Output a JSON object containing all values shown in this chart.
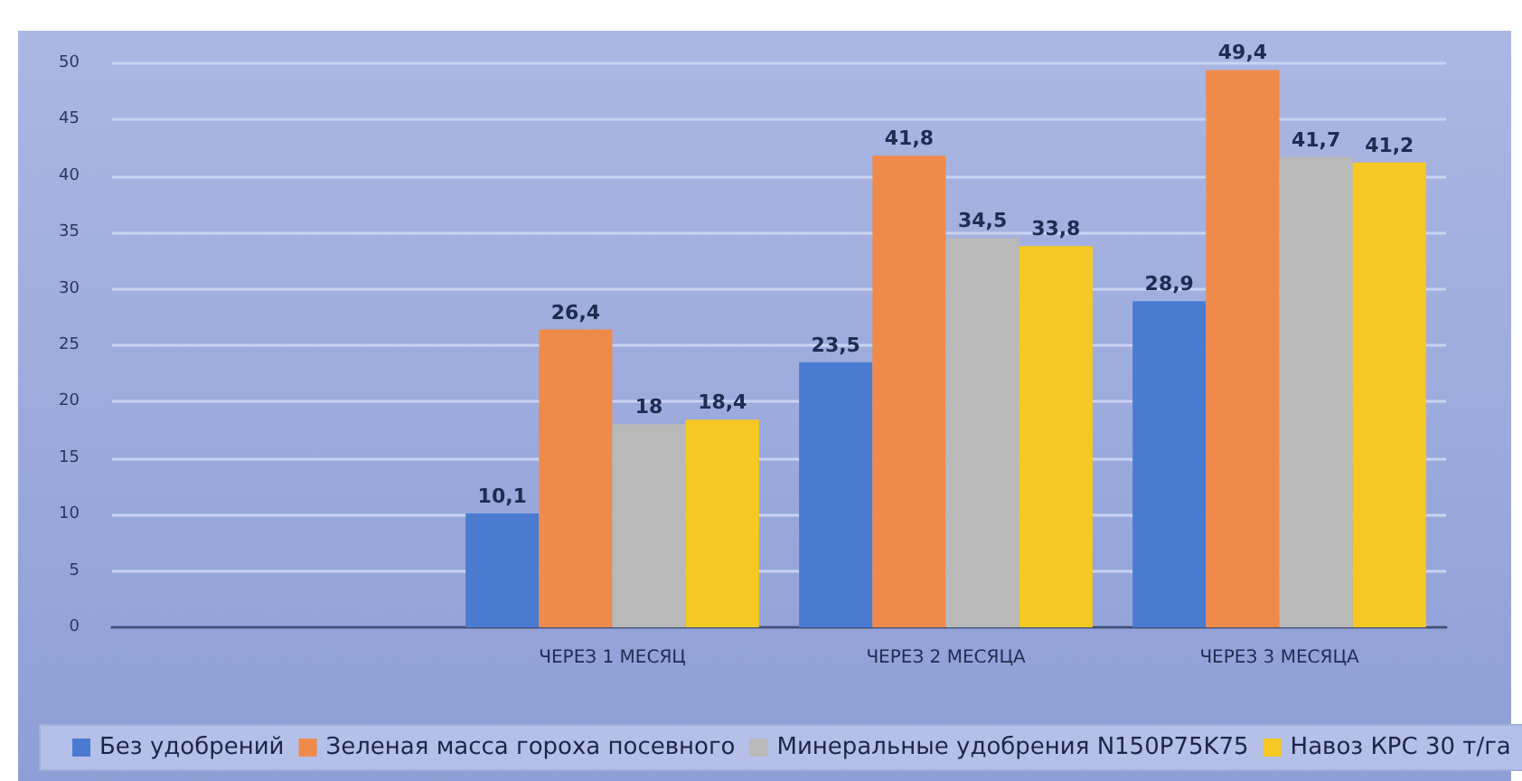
{
  "chart_data": {
    "type": "bar",
    "categories": [
      null,
      "ЧЕРЕЗ 1 МЕСЯЦ",
      "ЧЕРЕЗ 2 МЕСЯЦА",
      "ЧЕРЕЗ 3 МЕСЯЦА"
    ],
    "series": [
      {
        "name": "Без удобрений",
        "color": "#4a7bd0",
        "values": [
          null,
          10.1,
          23.5,
          28.9
        ],
        "value_labels": [
          null,
          "10,1",
          "23,5",
          "28,9"
        ]
      },
      {
        "name": "Зеленая масса гороха посевного",
        "color": "#f08a4b",
        "values": [
          null,
          26.4,
          41.8,
          49.4
        ],
        "value_labels": [
          null,
          "26,4",
          "41,8",
          "49,4"
        ]
      },
      {
        "name": "Минеральные удобрения N150P75K75",
        "color": "#b9b9b9",
        "values": [
          null,
          18,
          34.5,
          41.7
        ],
        "value_labels": [
          null,
          "18",
          "34,5",
          "41,7"
        ]
      },
      {
        "name": "Навоз КРС 30 т/га",
        "color": "#f5c823",
        "values": [
          null,
          18.4,
          33.8,
          41.2
        ],
        "value_labels": [
          null,
          "18,4",
          "33,8",
          "41,2"
        ]
      }
    ],
    "ylim": [
      0,
      50
    ],
    "yticks": [
      0,
      5,
      10,
      15,
      20,
      25,
      30,
      35,
      40,
      45,
      50
    ],
    "grid": "y",
    "legend": "bottom"
  }
}
